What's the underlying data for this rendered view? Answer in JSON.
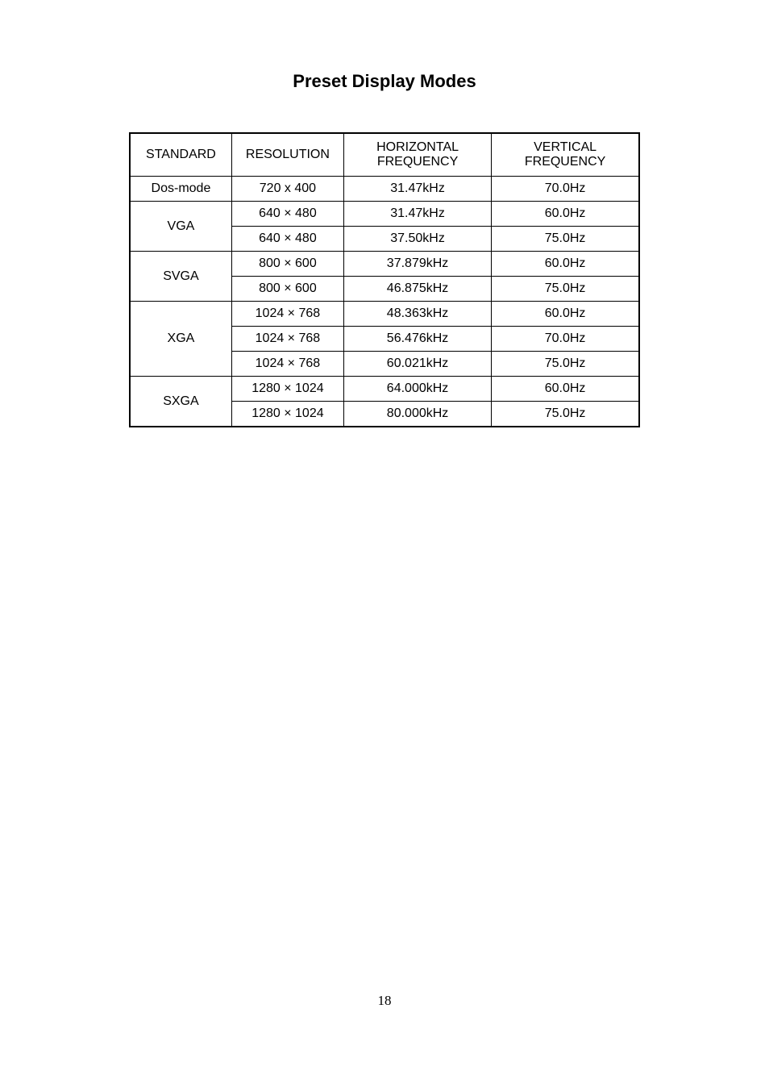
{
  "title": "Preset Display Modes",
  "page_number": "18",
  "table": {
    "columns": [
      "STANDARD",
      "RESOLUTION",
      "HORIZONTAL FREQUENCY",
      "VERTICAL FREQUENCY"
    ],
    "column_widths_pct": [
      20,
      22,
      29,
      29
    ],
    "border_color": "#000000",
    "background_color": "#ffffff",
    "font_size": 16,
    "groups": [
      {
        "standard": "Dos-mode",
        "rows": [
          {
            "resolution": "720 x 400",
            "hfreq": "31.47kHz",
            "vfreq": "70.0Hz"
          }
        ]
      },
      {
        "standard": "VGA",
        "rows": [
          {
            "resolution": "640 × 480",
            "hfreq": "31.47kHz",
            "vfreq": "60.0Hz"
          },
          {
            "resolution": "640 × 480",
            "hfreq": "37.50kHz",
            "vfreq": "75.0Hz"
          }
        ]
      },
      {
        "standard": "SVGA",
        "rows": [
          {
            "resolution": "800 × 600",
            "hfreq": "37.879kHz",
            "vfreq": "60.0Hz"
          },
          {
            "resolution": "800 × 600",
            "hfreq": "46.875kHz",
            "vfreq": "75.0Hz"
          }
        ]
      },
      {
        "standard": "XGA",
        "rows": [
          {
            "resolution": "1024 × 768",
            "hfreq": "48.363kHz",
            "vfreq": "60.0Hz"
          },
          {
            "resolution": "1024 × 768",
            "hfreq": "56.476kHz",
            "vfreq": "70.0Hz"
          },
          {
            "resolution": "1024 × 768",
            "hfreq": "60.021kHz",
            "vfreq": "75.0Hz"
          }
        ]
      },
      {
        "standard": "SXGA",
        "rows": [
          {
            "resolution": "1280 × 1024",
            "hfreq": "64.000kHz",
            "vfreq": "60.0Hz"
          },
          {
            "resolution": "1280 × 1024",
            "hfreq": "80.000kHz",
            "vfreq": "75.0Hz"
          }
        ]
      }
    ]
  }
}
